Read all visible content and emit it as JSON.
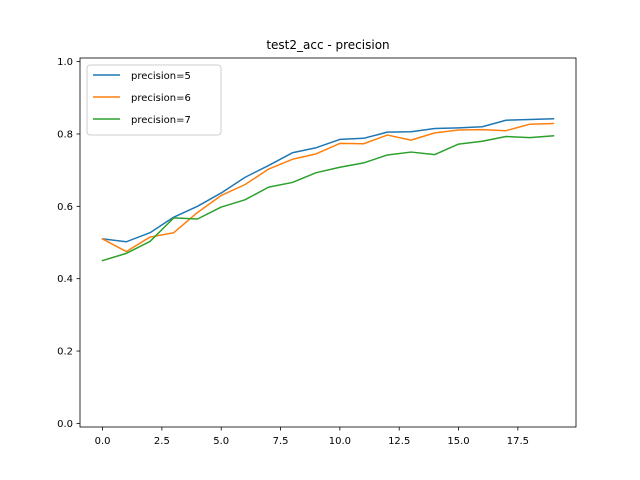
{
  "chart_data": {
    "type": "line",
    "title": "test2_acc - precision",
    "xlabel": "",
    "ylabel": "",
    "xlim": [
      -0.95,
      19.95
    ],
    "ylim": [
      -0.01,
      1.01
    ],
    "xticks": [
      0.0,
      2.5,
      5.0,
      7.5,
      10.0,
      12.5,
      15.0,
      17.5
    ],
    "xtick_labels": [
      "0.0",
      "2.5",
      "5.0",
      "7.5",
      "10.0",
      "12.5",
      "15.0",
      "17.5"
    ],
    "yticks": [
      0.0,
      0.2,
      0.4,
      0.6,
      0.8,
      1.0
    ],
    "ytick_labels": [
      "0.0",
      "0.2",
      "0.4",
      "0.6",
      "0.8",
      "1.0"
    ],
    "grid": false,
    "legend_position": "top-left",
    "x": [
      0,
      1,
      2,
      3,
      4,
      5,
      6,
      7,
      8,
      9,
      10,
      11,
      12,
      13,
      14,
      15,
      16,
      17,
      18,
      19
    ],
    "series": [
      {
        "name": "precision=5",
        "color": "#1f77b4",
        "values": [
          0.51,
          0.502,
          0.527,
          0.57,
          0.6,
          0.637,
          0.68,
          0.713,
          0.748,
          0.762,
          0.785,
          0.788,
          0.805,
          0.806,
          0.815,
          0.817,
          0.82,
          0.838,
          0.84,
          0.842
        ]
      },
      {
        "name": "precision=6",
        "color": "#ff7f0e",
        "values": [
          0.51,
          0.475,
          0.515,
          0.527,
          0.583,
          0.63,
          0.66,
          0.703,
          0.73,
          0.745,
          0.774,
          0.773,
          0.797,
          0.783,
          0.803,
          0.811,
          0.812,
          0.809,
          0.827,
          0.829
        ]
      },
      {
        "name": "precision=7",
        "color": "#2ca02c",
        "values": [
          0.45,
          0.47,
          0.503,
          0.568,
          0.565,
          0.598,
          0.618,
          0.653,
          0.666,
          0.693,
          0.708,
          0.72,
          0.742,
          0.75,
          0.743,
          0.772,
          0.78,
          0.793,
          0.79,
          0.795
        ]
      }
    ]
  }
}
